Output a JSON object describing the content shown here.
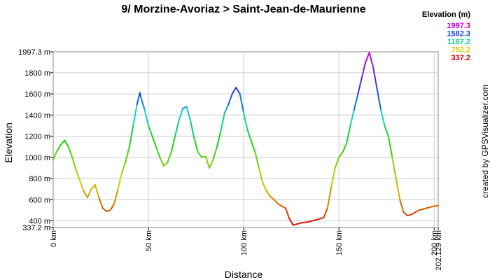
{
  "chart_data": {
    "type": "line",
    "title": "9/ Morzine-Avoriaz > Saint-Jean-de-Maurienne",
    "xlabel": "Distance",
    "ylabel": "Elevation",
    "side_credit": "created by GPSVisualizer.com",
    "ylim": [
      337.2,
      1997.3
    ],
    "xlim": [
      0,
      202.129
    ],
    "grid": true,
    "legend": {
      "placement": "top-right",
      "title": "Elevation (m)",
      "entries": [
        {
          "label": "1997.3",
          "color": "#d200d2"
        },
        {
          "label": "1582.3",
          "color": "#1446d6"
        },
        {
          "label": "1167.2",
          "color": "#12d2a0"
        },
        {
          "label": "752.2",
          "color": "#d2d200"
        },
        {
          "label": "337.2",
          "color": "#d20000"
        }
      ]
    },
    "y_ticks": [
      {
        "value": 337.2,
        "label": "337.2 m"
      },
      {
        "value": 400,
        "label": "400 m"
      },
      {
        "value": 600,
        "label": "600 m"
      },
      {
        "value": 800,
        "label": "800 m"
      },
      {
        "value": 1000,
        "label": "1000 m"
      },
      {
        "value": 1200,
        "label": "1200 m"
      },
      {
        "value": 1400,
        "label": "1400 m"
      },
      {
        "value": 1600,
        "label": "1600 m"
      },
      {
        "value": 1800,
        "label": "1800 m"
      },
      {
        "value": 1997.3,
        "label": "1997.3 m"
      }
    ],
    "x_ticks": [
      {
        "value": 0,
        "label": "0 km"
      },
      {
        "value": 50,
        "label": "50 km"
      },
      {
        "value": 100,
        "label": "100 km"
      },
      {
        "value": 150,
        "label": "150 km"
      },
      {
        "value": 200,
        "label": "200 km"
      },
      {
        "value": 202.129,
        "label": "202.129 km"
      }
    ],
    "color_scale": [
      {
        "value": 337.2,
        "color": "#d20000"
      },
      {
        "value": 752.2,
        "color": "#d2d200"
      },
      {
        "value": 1167.2,
        "color": "#12d212"
      },
      {
        "value": 1400,
        "color": "#12d2d2"
      },
      {
        "value": 1582.3,
        "color": "#1446d6"
      },
      {
        "value": 1997.3,
        "color": "#d200d2"
      }
    ],
    "series": [
      {
        "x": [
          0,
          2,
          4,
          6,
          8,
          10,
          12,
          14,
          16,
          18,
          20,
          22,
          24,
          26,
          28,
          30,
          32,
          34,
          36,
          38,
          40,
          42,
          44,
          45.5,
          46,
          48,
          50,
          52,
          54,
          56,
          58,
          60,
          62,
          64,
          66,
          68,
          70,
          72,
          74,
          76,
          78,
          80,
          82,
          84,
          86,
          88,
          90,
          92,
          94,
          96,
          98,
          100,
          102,
          104,
          106,
          108,
          110,
          112,
          114,
          116,
          118,
          120,
          122,
          124,
          126,
          128,
          130,
          132,
          134,
          136,
          138,
          140,
          142,
          144,
          146,
          148,
          150,
          152,
          154,
          156,
          158,
          160,
          162,
          164,
          166,
          168,
          170,
          172,
          174,
          176,
          178,
          180,
          182,
          184,
          186,
          188,
          190,
          192,
          194,
          196,
          198,
          200,
          202.129
        ],
        "y": [
          980,
          1060,
          1120,
          1160,
          1100,
          1000,
          880,
          780,
          680,
          620,
          700,
          740,
          620,
          520,
          490,
          500,
          560,
          700,
          850,
          960,
          1100,
          1300,
          1500,
          1610,
          1570,
          1450,
          1300,
          1200,
          1100,
          1000,
          920,
          950,
          1050,
          1200,
          1350,
          1460,
          1480,
          1350,
          1180,
          1050,
          1000,
          1010,
          900,
          980,
          1100,
          1250,
          1420,
          1500,
          1600,
          1660,
          1600,
          1420,
          1260,
          1150,
          1050,
          900,
          760,
          680,
          630,
          600,
          560,
          540,
          520,
          420,
          360,
          370,
          380,
          385,
          390,
          400,
          410,
          420,
          430,
          520,
          720,
          900,
          1000,
          1050,
          1130,
          1300,
          1450,
          1600,
          1750,
          1900,
          1990,
          1850,
          1650,
          1450,
          1300,
          1200,
          1000,
          800,
          600,
          480,
          450,
          460,
          480,
          500,
          510,
          520,
          530,
          540,
          545
        ]
      }
    ]
  }
}
